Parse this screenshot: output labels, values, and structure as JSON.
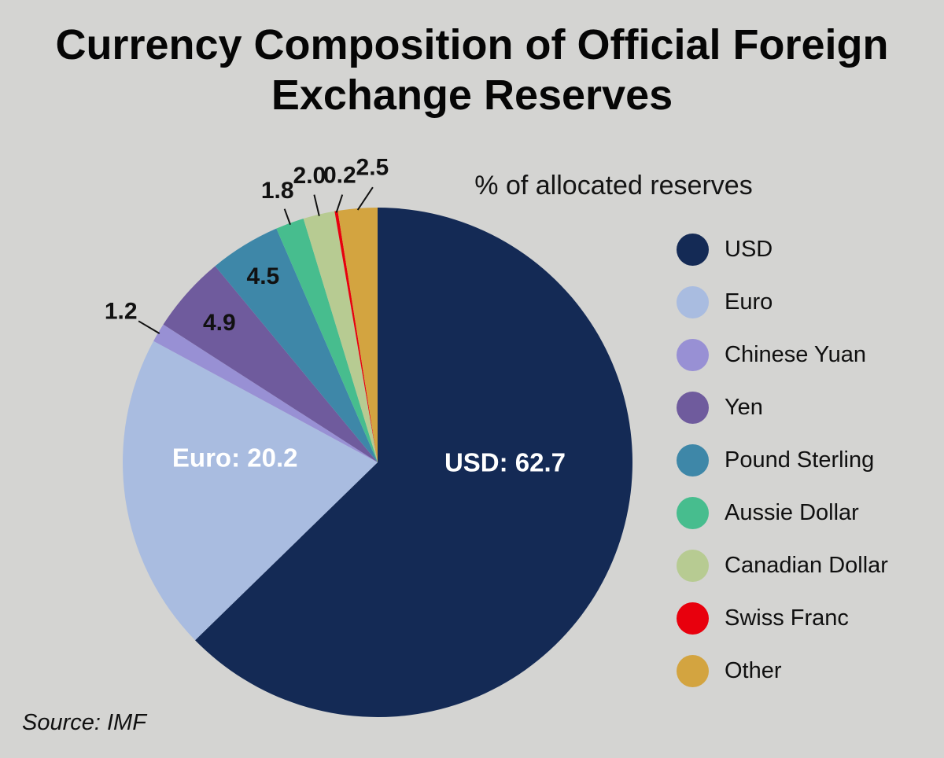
{
  "chart_data": {
    "type": "pie",
    "title": "Currency Composition of Official Foreign Exchange Reserves",
    "subtitle": "% of allocated reserves",
    "source": "Source: IMF",
    "legend_position": "right",
    "start_angle_deg": 0,
    "direction": "clockwise",
    "background_color": "#d4d4d2",
    "slices": [
      {
        "name": "USD",
        "value": 62.7,
        "color": "#142a55",
        "label_text": "USD: 62.7",
        "label_style": "inside",
        "label_angle": 90,
        "label_r": 0.5
      },
      {
        "name": "Euro",
        "value": 20.2,
        "color": "#a9bce0",
        "label_text": "Euro: 20.2",
        "label_style": "inside",
        "label_angle": 272,
        "label_r": 0.56
      },
      {
        "name": "Chinese Yuan",
        "value": 1.2,
        "color": "#9890d4",
        "label_text": "1.2",
        "label_style": "outside",
        "label_r": 1.17
      },
      {
        "name": "Yen",
        "value": 4.9,
        "color": "#6f5b9d",
        "label_text": "4.9",
        "label_style": "near",
        "label_r": 0.83
      },
      {
        "name": "Pound Sterling",
        "value": 4.5,
        "color": "#3e87a8",
        "label_text": "4.5",
        "label_style": "near",
        "label_r": 0.86
      },
      {
        "name": "Aussie Dollar",
        "value": 1.8,
        "color": "#47bd8e",
        "label_text": "1.8",
        "label_style": "outside",
        "label_r": 1.14
      },
      {
        "name": "Canadian Dollar",
        "value": 2.0,
        "color": "#b7cb92",
        "label_text": "2.0",
        "label_style": "outside",
        "label_r": 1.16
      },
      {
        "name": "Swiss Franc",
        "value": 0.2,
        "color": "#e8000d",
        "label_text": "0.2",
        "label_style": "outside",
        "label_angle": 352.5,
        "label_r": 1.14
      },
      {
        "name": "Other",
        "value": 2.5,
        "color": "#d3a440",
        "label_text": "2.5",
        "label_style": "outside",
        "label_angle": 359,
        "label_r": 1.16
      }
    ]
  }
}
